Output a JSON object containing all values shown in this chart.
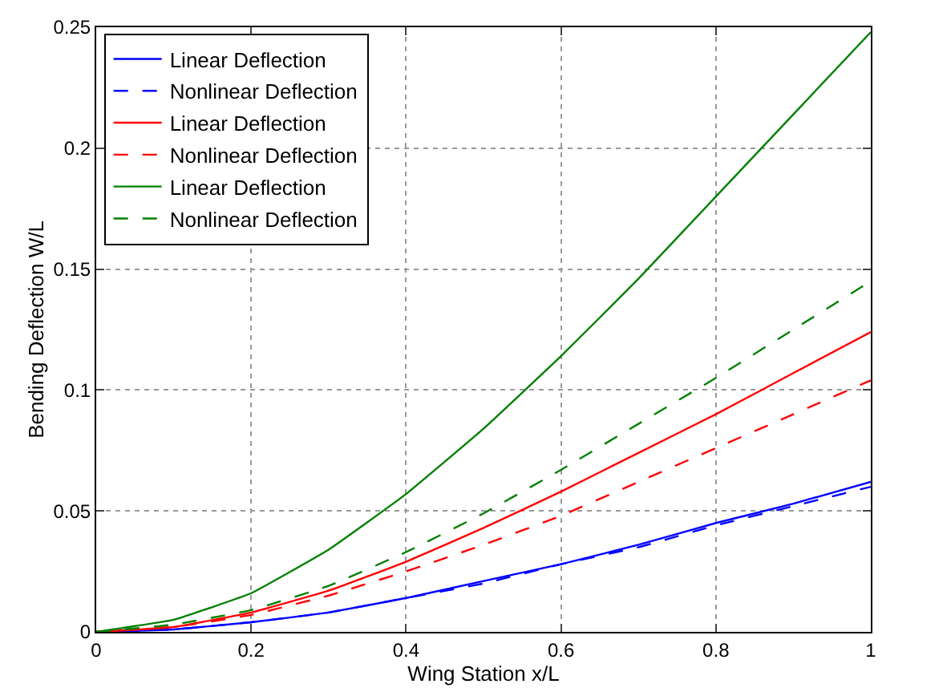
{
  "chart_data": {
    "type": "line",
    "xlabel": "Wing Station x/L",
    "ylabel": "Bending Deflection W/L",
    "x": [
      0,
      0.1,
      0.2,
      0.3,
      0.4,
      0.5,
      0.6,
      0.7,
      0.8,
      0.9,
      1
    ],
    "series": [
      {
        "name": "Linear Deflection",
        "color": "#0000ff",
        "line_style": "solid",
        "values": [
          0,
          0.001,
          0.004,
          0.008,
          0.014,
          0.021,
          0.028,
          0.036,
          0.045,
          0.053,
          0.062
        ]
      },
      {
        "name": "Nonlinear Deflection",
        "color": "#0000ff",
        "line_style": "dashed",
        "values": [
          0,
          0.001,
          0.004,
          0.008,
          0.014,
          0.02,
          0.028,
          0.035,
          0.044,
          0.052,
          0.06
        ]
      },
      {
        "name": "Linear Deflection",
        "color": "#ff0000",
        "line_style": "solid",
        "values": [
          0,
          0.002,
          0.008,
          0.017,
          0.029,
          0.043,
          0.058,
          0.074,
          0.09,
          0.107,
          0.124
        ]
      },
      {
        "name": "Nonlinear Deflection",
        "color": "#ff0000",
        "line_style": "dashed",
        "values": [
          0,
          0.002,
          0.007,
          0.015,
          0.025,
          0.036,
          0.048,
          0.062,
          0.076,
          0.09,
          0.104
        ]
      },
      {
        "name": "Linear Deflection",
        "color": "#008000",
        "line_style": "solid",
        "values": [
          0,
          0.005,
          0.016,
          0.034,
          0.057,
          0.084,
          0.114,
          0.146,
          0.18,
          0.214,
          0.248
        ]
      },
      {
        "name": "Nonlinear Deflection",
        "color": "#008000",
        "line_style": "dashed",
        "values": [
          0,
          0.003,
          0.009,
          0.019,
          0.033,
          0.049,
          0.067,
          0.086,
          0.105,
          0.125,
          0.145
        ]
      }
    ],
    "xlim": [
      0,
      1
    ],
    "xticks": [
      0,
      0.2,
      0.4,
      0.6,
      0.8,
      1
    ],
    "ylim": [
      0,
      0.25
    ],
    "yticks": [
      0,
      0.05,
      0.1,
      0.15,
      0.2,
      0.25
    ],
    "grid": true,
    "legend": "top left",
    "marker": "none"
  }
}
